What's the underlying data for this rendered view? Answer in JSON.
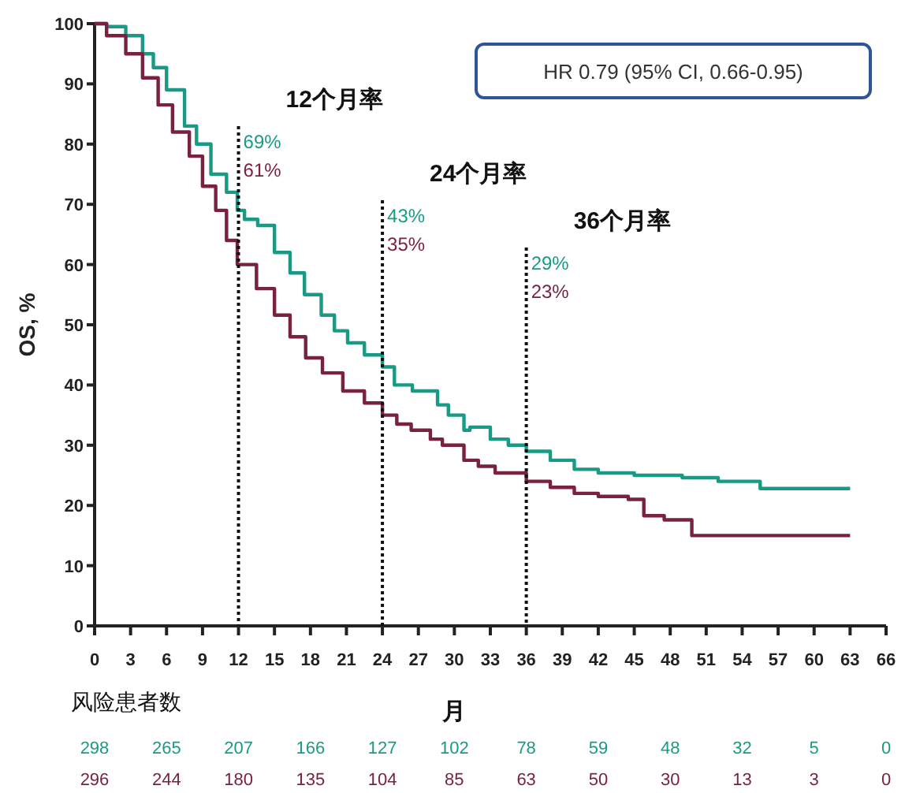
{
  "chart_data": {
    "type": "step",
    "ylabel": "OS, %",
    "xlabel": "月",
    "xlim": [
      0,
      66
    ],
    "ylim": [
      0,
      100
    ],
    "xticks": [
      0,
      3,
      6,
      9,
      12,
      15,
      18,
      21,
      24,
      27,
      30,
      33,
      36,
      39,
      42,
      45,
      48,
      51,
      54,
      57,
      60,
      63,
      66
    ],
    "yticks": [
      0,
      10,
      20,
      30,
      40,
      50,
      60,
      70,
      80,
      90,
      100
    ],
    "series": [
      {
        "color": "#1a9a85",
        "x": [
          0,
          1,
          2.6,
          4,
          4.9,
          6,
          7.5,
          8.5,
          9.7,
          11,
          11.9,
          12.5,
          13.6,
          15,
          16.3,
          17.5,
          18.9,
          20,
          21.1,
          22.5,
          24,
          25,
          26.5,
          28.6,
          29.5,
          30.8,
          31.3,
          33,
          34.5,
          36,
          38,
          40,
          42,
          45,
          49,
          52,
          55.5,
          58,
          63
        ],
        "values": [
          100,
          99.5,
          98,
          95,
          92.7,
          89,
          83,
          80,
          75,
          72,
          69,
          67.5,
          66.5,
          62,
          58.6,
          55,
          51.6,
          49,
          47,
          45,
          43,
          40,
          39,
          36.7,
          35,
          32.5,
          33,
          31,
          30,
          29,
          27.5,
          26,
          25.4,
          25,
          24.6,
          24,
          22.8,
          22.8,
          22.8
        ]
      },
      {
        "color": "#7a2142",
        "x": [
          0,
          1,
          2.6,
          4,
          5.3,
          6.5,
          7.9,
          9,
          10.1,
          11,
          11.9,
          13.5,
          15,
          16.3,
          17.6,
          19,
          20.7,
          22.5,
          24,
          25.2,
          26.4,
          28,
          29,
          30.8,
          32,
          33.4,
          36,
          38,
          40,
          42,
          44.5,
          45.8,
          47.5,
          49.8,
          55,
          63
        ],
        "values": [
          100,
          98,
          95,
          91,
          86.5,
          82,
          78,
          73,
          69,
          64,
          60,
          56,
          51.6,
          48,
          44.5,
          42,
          39,
          37,
          35,
          33.5,
          32.5,
          31,
          30,
          27.5,
          26.5,
          25.4,
          24,
          23,
          22,
          21.5,
          21,
          18.3,
          17.6,
          15,
          15,
          15
        ]
      }
    ],
    "ref_lines": [
      {
        "axis": "x",
        "value": 12,
        "label": "12个月率",
        "line_style": "dotted"
      },
      {
        "axis": "x",
        "value": 24,
        "label": "24个月率",
        "line_style": "dotted"
      },
      {
        "axis": "x",
        "value": 36,
        "label": "36个月率",
        "line_style": "dotted"
      }
    ],
    "annotations": [
      "69%",
      "61%",
      "43%",
      "35%",
      "29%",
      "23%",
      "HR 0.79 (95% CI, 0.66-0.95)",
      "风险患者数",
      "298",
      "265",
      "207",
      "166",
      "127",
      "102",
      "78",
      "59",
      "48",
      "32",
      "5",
      "0",
      "296",
      "244",
      "180",
      "135",
      "104",
      "85",
      "63",
      "50",
      "30",
      "13",
      "3",
      "0"
    ],
    "grid": false
  }
}
